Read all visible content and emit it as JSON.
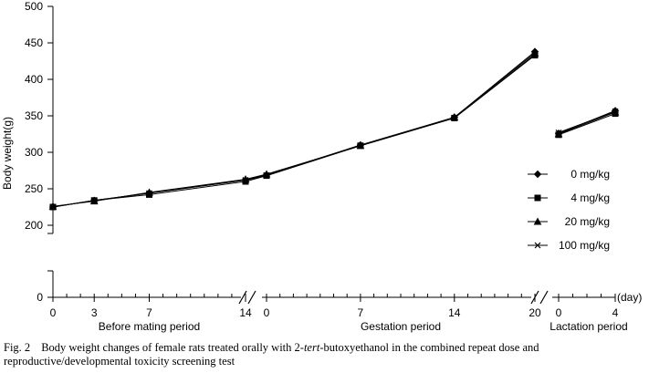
{
  "chart_data": {
    "type": "line",
    "ylabel": "Body weight(g)",
    "y_ticks": [
      0,
      200,
      250,
      300,
      350,
      400,
      450,
      500
    ],
    "ylim": [
      0,
      500
    ],
    "axis_break_y": [
      0,
      200
    ],
    "x_unit": "(day)",
    "periods": [
      {
        "name": "Before mating period",
        "ticks": [
          0,
          3,
          7,
          14
        ]
      },
      {
        "name": "Gestation period",
        "ticks": [
          0,
          7,
          14,
          20
        ]
      },
      {
        "name": "Lactation period",
        "ticks": [
          0,
          4
        ]
      }
    ],
    "series": [
      {
        "name": "0 mg/kg",
        "marker": "diamond",
        "before_mating": [
          225,
          234,
          244,
          262
        ],
        "gestation": [
          269,
          310,
          348,
          438
        ],
        "lactation": [
          326,
          357
        ]
      },
      {
        "name": "4 mg/kg",
        "marker": "square",
        "before_mating": [
          225,
          234,
          242,
          260
        ],
        "gestation": [
          268,
          309,
          347,
          433
        ],
        "lactation": [
          324,
          353
        ]
      },
      {
        "name": "20 mg/kg",
        "marker": "triangle",
        "before_mating": [
          226,
          233,
          245,
          263
        ],
        "gestation": [
          270,
          309,
          348,
          436
        ],
        "lactation": [
          325,
          355
        ]
      },
      {
        "name": "100 mg/kg",
        "marker": "x",
        "before_mating": [
          225,
          234,
          244,
          262
        ],
        "gestation": [
          268,
          309,
          347,
          434
        ],
        "lactation": [
          327,
          356
        ]
      }
    ]
  },
  "caption": {
    "figure_label": "Fig. 2",
    "text_before": "Body weight changes of female rats treated orally with 2-",
    "text_italic": "tert",
    "text_after": "-butoxyethanol in the combined repeat dose and reproductive/developmental toxicity screening test"
  }
}
